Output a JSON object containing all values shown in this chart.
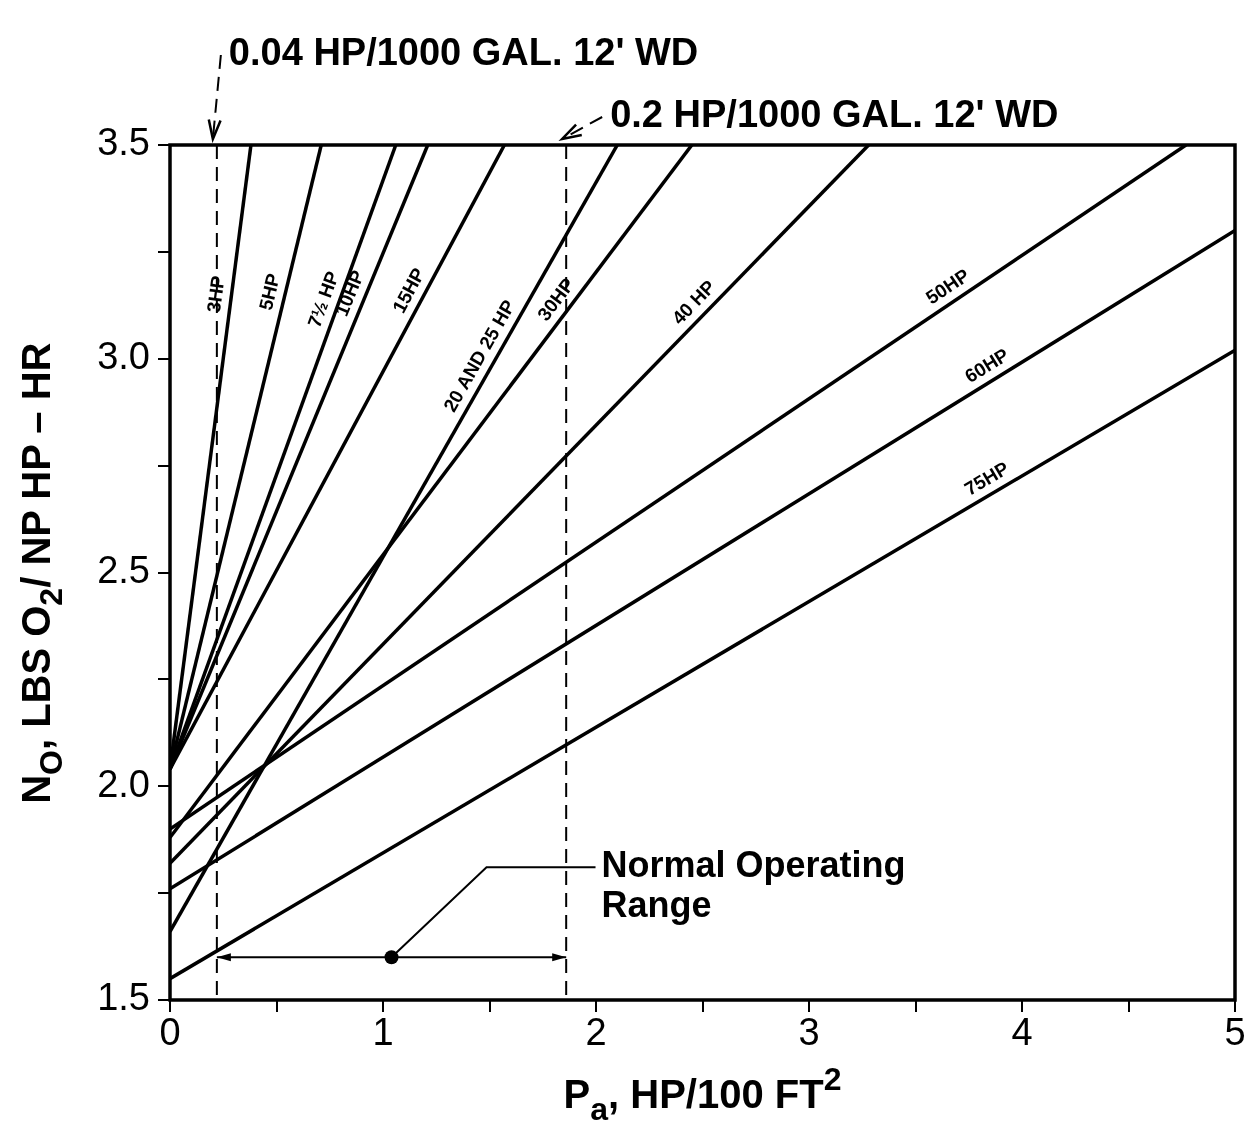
{
  "chart_data": {
    "type": "line",
    "xlabel": "P$_{a}$, HP/100 FT$^{2}$",
    "ylabel": "N$_{O}$, LBS O$_{2}$/ NP HP – HR",
    "xlim": [
      0,
      5
    ],
    "ylim": [
      1.5,
      3.5
    ],
    "xticks": [
      0,
      {
        "value": 0.5,
        "label": null
      },
      1,
      {
        "value": 1.5,
        "label": null
      },
      2,
      {
        "value": 2.5,
        "label": null
      },
      3,
      {
        "value": 3.5,
        "label": null
      },
      4,
      {
        "value": 4.5,
        "label": null
      },
      5
    ],
    "yticks": [
      1.5,
      {
        "value": 1.75,
        "label": null
      },
      {
        "value": 2,
        "label": "2.0"
      },
      {
        "value": 2.25,
        "label": null
      },
      2.5,
      {
        "value": 2.75,
        "label": null
      },
      {
        "value": 3,
        "label": "3.0"
      },
      {
        "value": 3.25,
        "label": null
      },
      3.5
    ],
    "grid": false,
    "marker": "none",
    "line_style": "solid",
    "series": [
      {
        "name": "3HP",
        "color": "#000000",
        "x": [
          0,
          0.38
        ],
        "values": [
          2.04,
          3.5
        ]
      },
      {
        "name": "5HP",
        "color": "#000000",
        "x": [
          0,
          0.71
        ],
        "values": [
          2.04,
          3.5
        ]
      },
      {
        "name": "7½ HP",
        "color": "#000000",
        "x": [
          0,
          1.06
        ],
        "values": [
          2.04,
          3.5
        ]
      },
      {
        "name": "10HP",
        "color": "#000000",
        "x": [
          0,
          1.21
        ],
        "values": [
          2.04,
          3.5
        ]
      },
      {
        "name": "15HP",
        "color": "#000000",
        "x": [
          0,
          1.57
        ],
        "values": [
          2.04,
          3.5
        ]
      },
      {
        "name": "20 AND 25 HP",
        "color": "#000000",
        "x": [
          0,
          2.1
        ],
        "values": [
          1.66,
          3.5
        ]
      },
      {
        "name": "30HP",
        "color": "#000000",
        "x": [
          0,
          2.45
        ],
        "values": [
          1.88,
          3.5
        ]
      },
      {
        "name": "40 HP",
        "color": "#000000",
        "x": [
          0,
          3.28
        ],
        "values": [
          1.82,
          3.5
        ]
      },
      {
        "name": "50HP",
        "color": "#000000",
        "x": [
          0,
          4.77
        ],
        "values": [
          1.9,
          3.5
        ]
      },
      {
        "name": "60HP",
        "color": "#000000",
        "x": [
          0,
          5
        ],
        "values": [
          1.76,
          3.3
        ]
      },
      {
        "name": "75HP",
        "color": "#000000",
        "x": [
          0,
          5
        ],
        "values": [
          1.55,
          3.02
        ]
      }
    ],
    "ref_lines": [
      {
        "axis": "x",
        "value": 0.22,
        "label": "0.04 HP/1000 GAL. 12' WD",
        "line_style": "dashed"
      },
      {
        "axis": "x",
        "value": 1.86,
        "label": "0.2 HP/1000 GAL. 12' WD",
        "line_style": "dashed"
      }
    ],
    "annotations": [
      {
        "text": "Normal Operating Range",
        "x": 1.04,
        "y": 1.6
      }
    ]
  }
}
